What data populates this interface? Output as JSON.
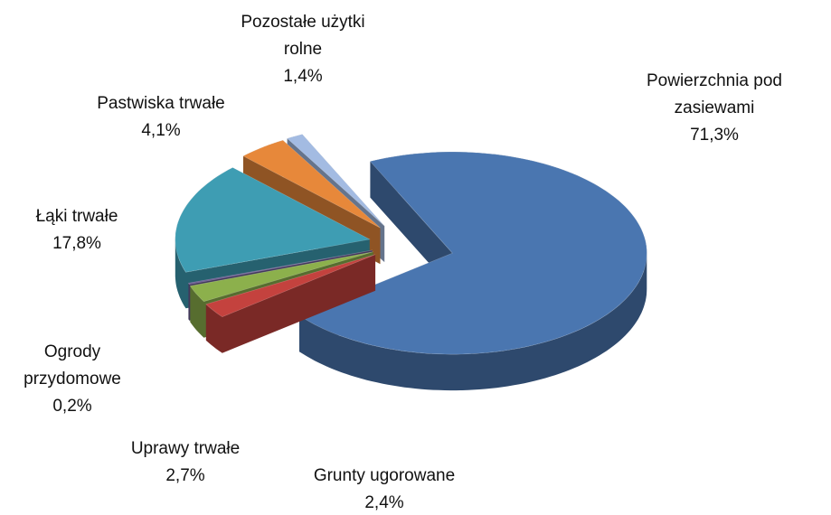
{
  "chart_data": {
    "type": "pie",
    "categories": [
      "Powierzchnia pod zasiewami",
      "Grunty ugorowane",
      "Uprawy trwałe",
      "Ogrody przydomowe",
      "Łąki trwałe",
      "Pastwiska trwałe",
      "Pozostałe użytki rolne"
    ],
    "values": [
      71.3,
      2.4,
      2.7,
      0.2,
      17.8,
      4.1,
      1.4
    ],
    "value_labels": [
      "71,3%",
      "2,4%",
      "2,7%",
      "0,2%",
      "17,8%",
      "4,1%",
      "1,4%"
    ],
    "colors": [
      "#4a76b0",
      "#c4423e",
      "#8cb04c",
      "#6b5a94",
      "#3e9db3",
      "#e7883a",
      "#a3bbe2"
    ]
  }
}
